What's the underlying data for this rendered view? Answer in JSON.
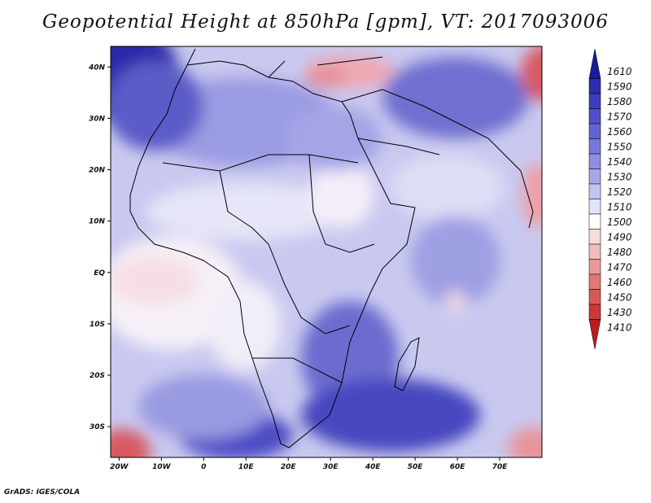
{
  "title": "Geopotential Height at 850hPa [gpm], VT: 2017093006",
  "credit": "GrADS: IGES/COLA",
  "lat_labels": [
    "40N",
    "30N",
    "20N",
    "10N",
    "EQ",
    "10S",
    "20S",
    "30S"
  ],
  "lat_values": [
    40,
    30,
    20,
    10,
    0,
    -10,
    -20,
    -30
  ],
  "lon_labels": [
    "20W",
    "10W",
    "0",
    "10E",
    "20E",
    "30E",
    "40E",
    "50E",
    "60E",
    "70E"
  ],
  "lon_values": [
    -20,
    -10,
    0,
    10,
    20,
    30,
    40,
    50,
    60,
    70
  ],
  "extent": {
    "lon_min": -22,
    "lon_max": 80,
    "lat_min": -36,
    "lat_max": 44
  },
  "colorbar": {
    "levels": [
      "1610",
      "1590",
      "1580",
      "1570",
      "1560",
      "1550",
      "1540",
      "1530",
      "1520",
      "1510",
      "1500",
      "1490",
      "1480",
      "1470",
      "1460",
      "1450",
      "1430",
      "1410"
    ],
    "colors": [
      "#1a1a9a",
      "#2c2cae",
      "#3d3dbd",
      "#5050c8",
      "#6464d0",
      "#7878d8",
      "#8e8ee0",
      "#a8a8e8",
      "#c4c4f0",
      "#e2e2f8",
      "#ffffff",
      "#f8dcdc",
      "#f0bcbc",
      "#e89a9a",
      "#e07878",
      "#d85858",
      "#cc3838",
      "#b81e1e"
    ]
  }
}
